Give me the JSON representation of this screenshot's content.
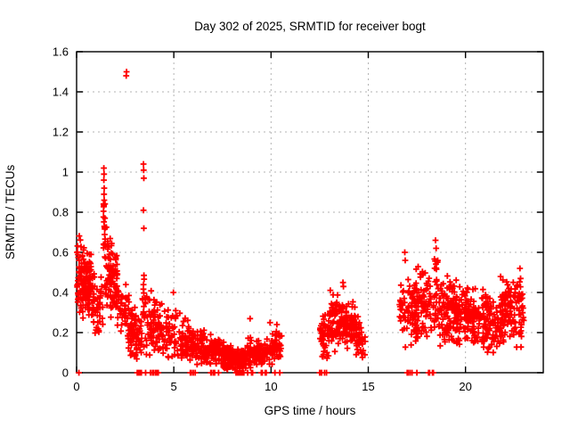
{
  "chart_data": {
    "type": "scatter",
    "title": "Day 302 of 2025, SRMTID for receiver bogt",
    "xlabel": "GPS time / hours",
    "ylabel": "SRMTID / TECUs",
    "xlim": [
      0,
      24
    ],
    "ylim": [
      0,
      1.6
    ],
    "grid": true,
    "legend": "none",
    "xticks": [
      {
        "label": "0",
        "value": 0
      },
      {
        "label": "5",
        "value": 5
      },
      {
        "label": "10",
        "value": 10
      },
      {
        "label": "15",
        "value": 15
      },
      {
        "label": "20",
        "value": 20
      }
    ],
    "yticks": [
      {
        "label": "0",
        "value": 0
      },
      {
        "label": "0.2",
        "value": 0.2
      },
      {
        "label": "0.4",
        "value": 0.4
      },
      {
        "label": "0.6",
        "value": 0.6
      },
      {
        "label": "0.8",
        "value": 0.8
      },
      {
        "label": "1",
        "value": 1.0
      },
      {
        "label": "1.2",
        "value": 1.2
      },
      {
        "label": "1.4",
        "value": 1.4
      },
      {
        "label": "1.6",
        "value": 1.6
      }
    ],
    "marker": {
      "shape": "plus",
      "size": 7
    },
    "colors": {
      "marker": "#ff0000",
      "grid": "#b3b3b3",
      "axis": "#000000",
      "background": "#ffffff"
    },
    "series_name": "SRMTID",
    "clusters": [
      {
        "x0": 0.02,
        "x1": 0.75,
        "y0": [
          0.28,
          0.7
        ],
        "y1": [
          0.24,
          0.62
        ],
        "n": 140
      },
      {
        "x0": 0.75,
        "x1": 1.35,
        "y0": [
          0.18,
          0.55
        ],
        "y1": [
          0.16,
          0.5
        ],
        "n": 55
      },
      {
        "x0": 1.37,
        "x1": 1.47,
        "y0": [
          0.5,
          1.0
        ],
        "y1": [
          0.5,
          0.95
        ],
        "n": 16
      },
      {
        "x0": 1.45,
        "x1": 2.1,
        "y0": [
          0.3,
          0.76
        ],
        "y1": [
          0.22,
          0.62
        ],
        "n": 100
      },
      {
        "x0": 2.1,
        "x1": 2.75,
        "y0": [
          0.16,
          0.5
        ],
        "y1": [
          0.1,
          0.42
        ],
        "n": 50
      },
      {
        "x0": 2.75,
        "x1": 3.35,
        "y0": [
          0.05,
          0.4
        ],
        "y1": [
          0.04,
          0.3
        ],
        "n": 75
      },
      {
        "x0": 3.38,
        "x1": 3.5,
        "y0": [
          0.1,
          0.65
        ],
        "y1": [
          0.08,
          0.6
        ],
        "n": 14
      },
      {
        "x0": 3.5,
        "x1": 4.45,
        "y0": [
          0.07,
          0.45
        ],
        "y1": [
          0.06,
          0.36
        ],
        "n": 90
      },
      {
        "x0": 4.45,
        "x1": 5.6,
        "y0": [
          0.06,
          0.38
        ],
        "y1": [
          0.05,
          0.3
        ],
        "n": 75
      },
      {
        "x0": 5.6,
        "x1": 6.4,
        "y0": [
          0.04,
          0.27
        ],
        "y1": [
          0.03,
          0.22
        ],
        "n": 80
      },
      {
        "x0": 6.4,
        "x1": 7.6,
        "y0": [
          0.02,
          0.22
        ],
        "y1": [
          0.015,
          0.17
        ],
        "n": 115
      },
      {
        "x0": 7.6,
        "x1": 8.75,
        "y0": [
          0.01,
          0.15
        ],
        "y1": [
          0.01,
          0.12
        ],
        "n": 140
      },
      {
        "x0": 8.75,
        "x1": 9.5,
        "y0": [
          0.02,
          0.19
        ],
        "y1": [
          0.02,
          0.17
        ],
        "n": 70
      },
      {
        "x0": 9.5,
        "x1": 10.25,
        "y0": [
          0.02,
          0.16
        ],
        "y1": [
          0.03,
          0.22
        ],
        "n": 60
      },
      {
        "x0": 10.25,
        "x1": 10.55,
        "y0": [
          0.04,
          0.25
        ],
        "y1": [
          0.03,
          0.19
        ],
        "n": 28
      },
      {
        "x0": 12.5,
        "x1": 13.0,
        "y0": [
          0.04,
          0.3
        ],
        "y1": [
          0.08,
          0.35
        ],
        "n": 50
      },
      {
        "x0": 13.0,
        "x1": 14.4,
        "y0": [
          0.08,
          0.43
        ],
        "y1": [
          0.08,
          0.38
        ],
        "n": 170
      },
      {
        "x0": 14.4,
        "x1": 14.85,
        "y0": [
          0.08,
          0.3
        ],
        "y1": [
          0.07,
          0.22
        ],
        "n": 30
      },
      {
        "x0": 16.6,
        "x1": 17.35,
        "y0": [
          0.1,
          0.52
        ],
        "y1": [
          0.1,
          0.55
        ],
        "n": 60
      },
      {
        "x0": 17.35,
        "x1": 18.25,
        "y0": [
          0.12,
          0.58
        ],
        "y1": [
          0.12,
          0.52
        ],
        "n": 95
      },
      {
        "x0": 18.35,
        "x1": 18.6,
        "y0": [
          0.15,
          0.65
        ],
        "y1": [
          0.15,
          0.58
        ],
        "n": 30
      },
      {
        "x0": 18.6,
        "x1": 19.6,
        "y0": [
          0.1,
          0.52
        ],
        "y1": [
          0.12,
          0.48
        ],
        "n": 125
      },
      {
        "x0": 19.6,
        "x1": 20.6,
        "y0": [
          0.12,
          0.48
        ],
        "y1": [
          0.1,
          0.44
        ],
        "n": 115
      },
      {
        "x0": 20.6,
        "x1": 21.8,
        "y0": [
          0.08,
          0.43
        ],
        "y1": [
          0.1,
          0.4
        ],
        "n": 125
      },
      {
        "x0": 21.8,
        "x1": 22.45,
        "y0": [
          0.1,
          0.5
        ],
        "y1": [
          0.12,
          0.46
        ],
        "n": 75
      },
      {
        "x0": 22.45,
        "x1": 23.0,
        "y0": [
          0.1,
          0.52
        ],
        "y1": [
          0.12,
          0.48
        ],
        "n": 55
      }
    ],
    "outlier_points": [
      [
        2.55,
        1.48
      ],
      [
        2.57,
        1.5
      ],
      [
        1.4,
        1.02
      ],
      [
        1.41,
        0.99
      ],
      [
        1.4,
        0.96
      ],
      [
        1.42,
        0.92
      ],
      [
        1.41,
        0.89
      ],
      [
        1.42,
        0.86
      ],
      [
        1.4,
        0.83
      ],
      [
        3.44,
        1.04
      ],
      [
        3.45,
        1.01
      ],
      [
        3.46,
        0.97
      ],
      [
        3.44,
        0.81
      ],
      [
        3.46,
        0.72
      ],
      [
        8.92,
        0.27
      ],
      [
        4.98,
        0.4
      ],
      [
        9.95,
        0.25
      ],
      [
        10.3,
        0.24
      ],
      [
        13.7,
        0.45
      ],
      [
        13.72,
        0.43
      ],
      [
        16.88,
        0.6
      ],
      [
        16.9,
        0.56
      ],
      [
        18.46,
        0.66
      ],
      [
        18.49,
        0.62
      ],
      [
        22.8,
        0.52
      ],
      [
        22.83,
        0.47
      ]
    ],
    "zero_line_points": [
      0.12,
      3.12,
      3.2,
      3.28,
      3.33,
      3.55,
      3.8,
      3.9,
      3.95,
      4.05,
      4.1,
      4.15,
      4.2,
      5.85,
      5.9,
      6.0,
      6.1,
      6.9,
      6.95,
      7.05,
      7.1,
      7.3,
      8.2,
      8.25,
      8.3,
      8.35,
      8.38,
      8.42,
      8.46,
      8.5,
      8.55,
      8.6,
      8.8,
      9.0,
      9.05,
      9.5,
      9.55,
      9.7,
      9.75,
      10.2,
      10.45,
      12.5,
      12.55,
      12.6,
      12.75,
      12.85,
      17.0,
      17.05,
      17.15,
      17.25,
      17.5,
      18.1,
      18.15,
      18.3,
      18.35
    ]
  }
}
